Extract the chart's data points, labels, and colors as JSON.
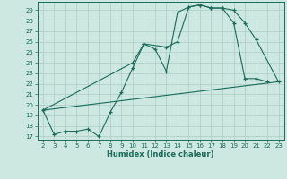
{
  "xlabel": "Humidex (Indice chaleur)",
  "bg_color": "#cce8e0",
  "grid_color": "#aaccc4",
  "line_color": "#1a6b5a",
  "xlim": [
    1.5,
    23.5
  ],
  "ylim": [
    16.7,
    29.8
  ],
  "xticks": [
    2,
    3,
    4,
    5,
    6,
    7,
    8,
    9,
    10,
    11,
    12,
    13,
    14,
    15,
    16,
    17,
    18,
    19,
    20,
    21,
    22,
    23
  ],
  "yticks": [
    17,
    18,
    19,
    20,
    21,
    22,
    23,
    24,
    25,
    26,
    27,
    28,
    29
  ],
  "line1_x": [
    2,
    3,
    4,
    5,
    6,
    7,
    8,
    9,
    10,
    11,
    12,
    13,
    14,
    15,
    16,
    17,
    18,
    19,
    20,
    21,
    22
  ],
  "line1_y": [
    19.5,
    17.2,
    17.5,
    17.5,
    17.7,
    17.0,
    19.3,
    21.2,
    23.5,
    25.8,
    25.3,
    23.2,
    28.8,
    29.3,
    29.5,
    29.2,
    29.2,
    27.8,
    22.5,
    22.5,
    22.2
  ],
  "line2_x": [
    2,
    10,
    11,
    13,
    14,
    15,
    16,
    17,
    18,
    19,
    20,
    21,
    23
  ],
  "line2_y": [
    19.5,
    24.0,
    25.8,
    25.5,
    26.0,
    29.3,
    29.5,
    29.2,
    29.2,
    29.0,
    27.8,
    26.2,
    22.2
  ],
  "line3_x": [
    2,
    23
  ],
  "line3_y": [
    19.5,
    22.2
  ]
}
